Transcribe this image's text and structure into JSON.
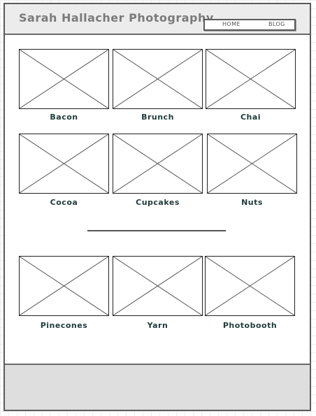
{
  "header": {
    "site_title": "Sarah Hallacher Photography",
    "nav": [
      "HOME",
      "BLOG"
    ]
  },
  "gallery": {
    "row1": [
      "Bacon",
      "Brunch",
      "Chai"
    ],
    "row2": [
      "Cocoa",
      "Cupcakes",
      "Nuts"
    ],
    "row3": [
      "Pinecones",
      "Yarn",
      "Photobooth"
    ]
  },
  "colors": {
    "header_bg": "#ececec",
    "footer_bg": "#dedede",
    "caption_text": "#1f3a3a"
  },
  "icons": {
    "image_placeholder": "image-placeholder-icon"
  }
}
